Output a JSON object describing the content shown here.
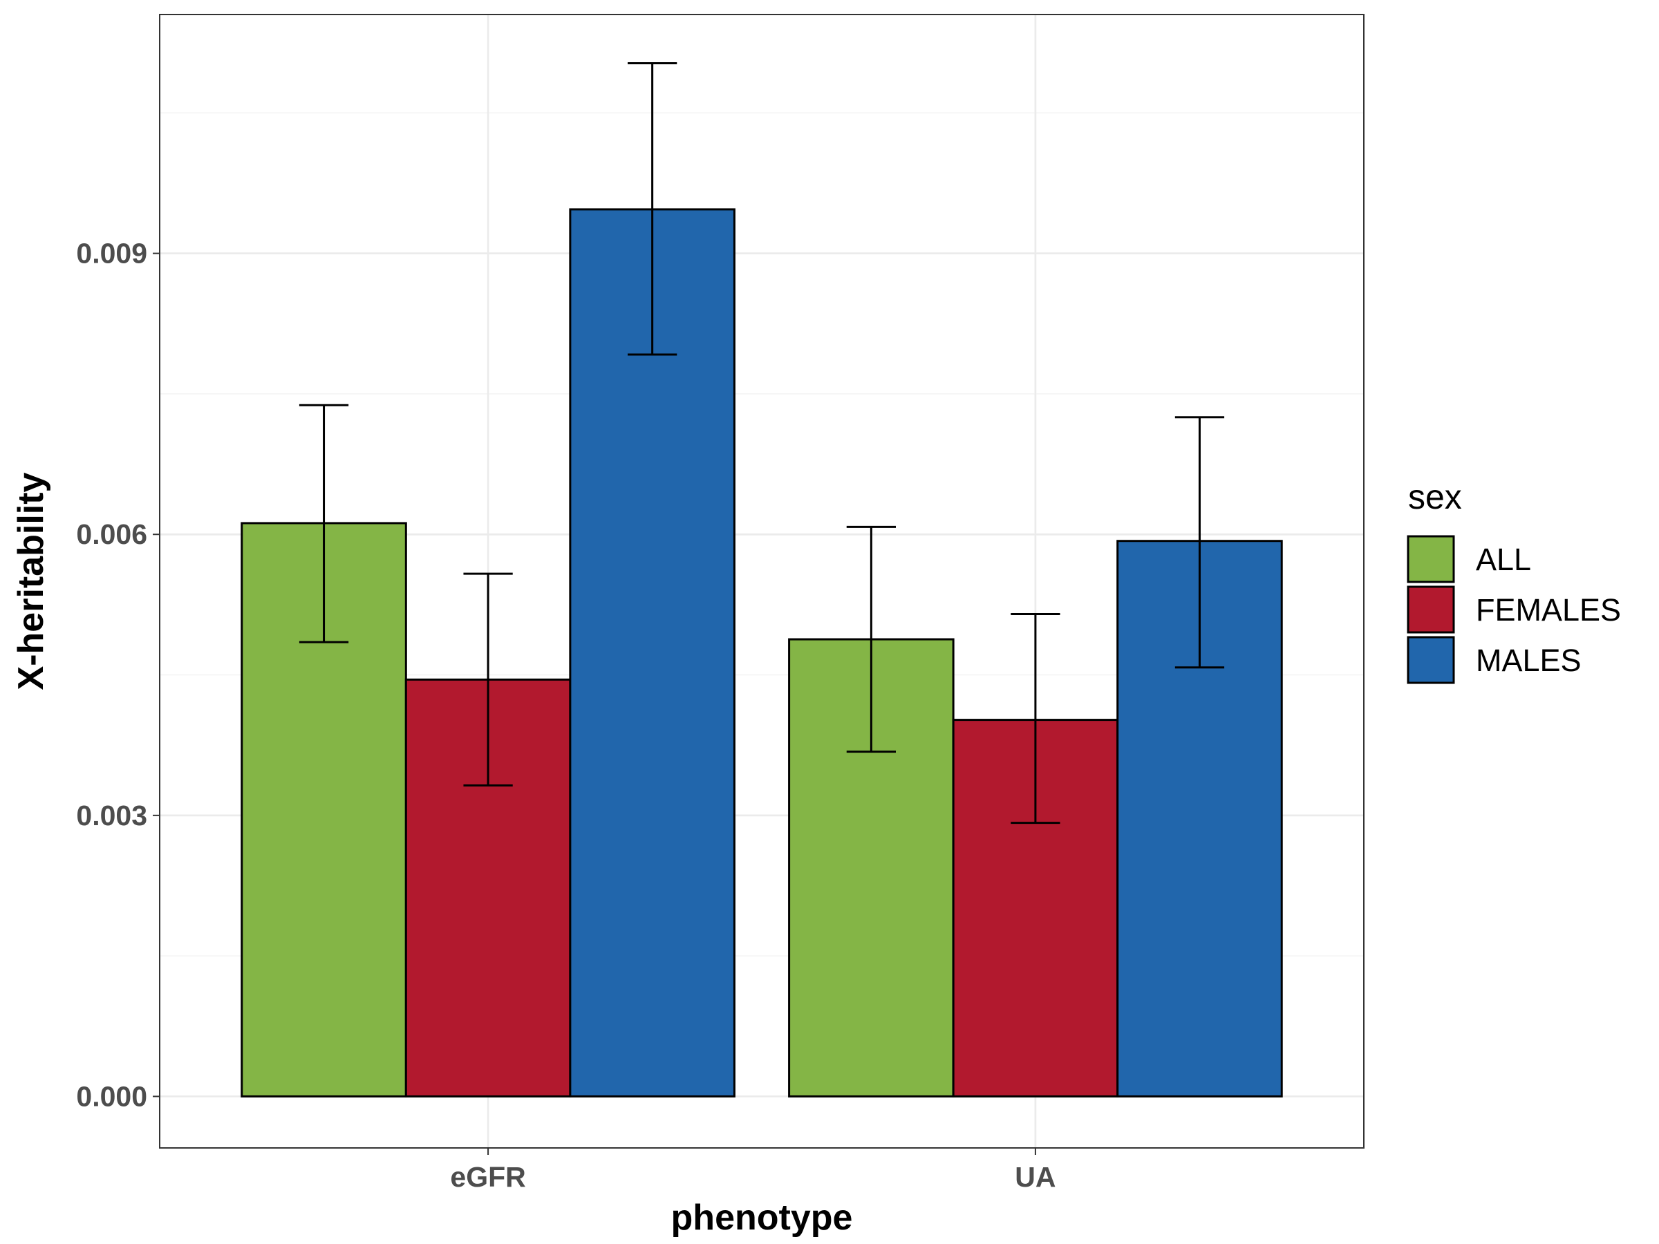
{
  "chart_data": {
    "type": "bar",
    "xlabel": "phenotype",
    "ylabel": "X-heritability",
    "categories": [
      "eGFR",
      "UA"
    ],
    "ylim": [
      -0.00055,
      0.01155
    ],
    "yticks": [
      {
        "value": 0.0,
        "label": "0.000"
      },
      {
        "value": 0.003,
        "label": "0.003"
      },
      {
        "value": 0.006,
        "label": "0.006"
      },
      {
        "value": 0.009,
        "label": "0.009"
      }
    ],
    "grid": true,
    "legend": {
      "title": "sex",
      "position": "right"
    },
    "series": [
      {
        "name": "ALL",
        "color": "#84b546",
        "values": [
          0.00612,
          0.00488
        ],
        "err_low": [
          0.00485,
          0.00368
        ],
        "err_high": [
          0.00738,
          0.00608
        ]
      },
      {
        "name": "FEMALES",
        "color": "#b2192e",
        "values": [
          0.00445,
          0.00402
        ],
        "err_low": [
          0.00332,
          0.00292
        ],
        "err_high": [
          0.00558,
          0.00515
        ]
      },
      {
        "name": "MALES",
        "color": "#2166ac",
        "values": [
          0.00947,
          0.00593
        ],
        "err_low": [
          0.00792,
          0.00458
        ],
        "err_high": [
          0.01103,
          0.00725
        ]
      }
    ]
  }
}
